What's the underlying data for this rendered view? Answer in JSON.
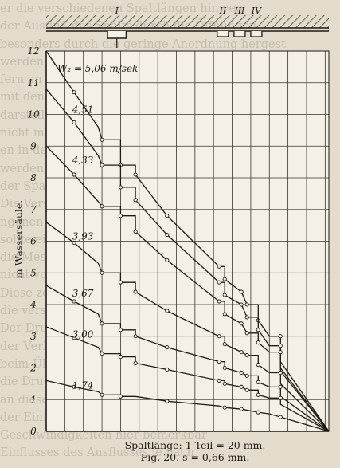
{
  "background_text": [
    "er die verschiedenen Spaltlängen hinweg",
    "der Ausfluß des Spalts durch die Öffnungen",
    "besonders durch die geringe Anordnung hergest",
    "werden die Druckverhältnisse und einzelne",
    "fern an den Stellen der Stoßzusammensetzung",
    "mit den verschiedenen kleinen Geschwindigkeiten",
    "darstellungen der Versuche für diesen Fall",
    "nicht mit den anderen Versuchsergebnissen",
    "en in der Anordnung der Spaltmündung",
    "werden die Druckhöhen durch Wasser auf",
    "der Spaltweiten, die Ergebnisse aus Versuchen",
    "Die Versuche in Ergänzung von Farbenuntersu",
    "ngenen Berührung zwischen den glatten Wänden",
    "sollte ein Vergleich dieser ursprünglich",
    "die Messung der Spaltlängen bei den einzelnen Stellen",
    "nicht vor allem bei verschiedenen Spaltweiten",
    "Diese zeigen auch, daß hierbei in den Wassersäulen",
    "die verschiedenen Spalten unmittelbar hinter",
    "Der Druck des Wassers verläuft in der Spaltrichtung",
    "der Verlauf der Linien im Bild nach den Versuchen",
    "beim Übergang von einer Stelle zur anderen",
    "die Druckabnahme im Spalt geradlinig erfolgt",
    "an diesen Stellen geringere Unterschiede",
    "der Einfluß der Stöße wird bei kleinen",
    "Geschwindigkeiten hier bemerkbar",
    "Einflusses des Ausflusses je nach"
  ],
  "chart_data": {
    "type": "line",
    "title": "",
    "xlabel": "Spaltlänge: 1 Teil = 20 mm.",
    "ylabel": "m Wassersäule.",
    "xlim": [
      0,
      15.2
    ],
    "ylim": [
      0,
      12
    ],
    "y_ticks": [
      0,
      1,
      2,
      3,
      4,
      5,
      6,
      7,
      8,
      9,
      10,
      11,
      12
    ],
    "grid": true,
    "legend": "none",
    "unit_label": "m/sek",
    "spalt_labels": [
      "I",
      "II",
      "III",
      "IV"
    ],
    "series": [
      {
        "name": "W₂ = 5,06",
        "label": "W₂ = 5,06 m/sek",
        "points": [
          [
            0,
            12.0
          ],
          [
            1.5,
            10.7
          ],
          [
            2.8,
            9.6
          ],
          [
            3.0,
            9.2
          ],
          [
            4.0,
            9.2
          ],
          [
            4.0,
            8.4
          ],
          [
            4.8,
            8.4
          ],
          [
            4.8,
            8.1
          ],
          [
            6.5,
            6.8
          ],
          [
            9.3,
            5.2
          ],
          [
            9.6,
            5.2
          ],
          [
            9.6,
            4.8
          ],
          [
            10.5,
            4.4
          ],
          [
            10.8,
            4.0
          ],
          [
            11.4,
            4.0
          ],
          [
            11.4,
            3.5
          ],
          [
            12.0,
            3.0
          ],
          [
            12.6,
            3.0
          ],
          [
            12.6,
            2.2
          ],
          [
            15.2,
            0
          ]
        ]
      },
      {
        "name": "4,51",
        "points": [
          [
            0,
            10.8
          ],
          [
            1.5,
            9.75
          ],
          [
            2.8,
            8.7
          ],
          [
            3.0,
            8.4
          ],
          [
            4.0,
            8.4
          ],
          [
            4.0,
            7.7
          ],
          [
            4.8,
            7.7
          ],
          [
            4.8,
            7.3
          ],
          [
            6.5,
            6.2
          ],
          [
            9.3,
            4.7
          ],
          [
            9.6,
            4.7
          ],
          [
            9.6,
            4.3
          ],
          [
            10.5,
            4.0
          ],
          [
            10.8,
            3.6
          ],
          [
            11.4,
            3.6
          ],
          [
            11.4,
            3.2
          ],
          [
            12.0,
            2.7
          ],
          [
            12.6,
            2.7
          ],
          [
            12.6,
            2.0
          ],
          [
            15.2,
            0
          ]
        ]
      },
      {
        "name": "4,33",
        "points": [
          [
            0,
            9.0
          ],
          [
            1.5,
            8.1
          ],
          [
            2.8,
            7.25
          ],
          [
            3.0,
            7.1
          ],
          [
            4.0,
            7.1
          ],
          [
            4.0,
            6.8
          ],
          [
            4.8,
            6.8
          ],
          [
            4.8,
            6.3
          ],
          [
            6.5,
            5.4
          ],
          [
            9.3,
            4.1
          ],
          [
            9.6,
            4.1
          ],
          [
            9.6,
            3.7
          ],
          [
            10.5,
            3.4
          ],
          [
            10.8,
            3.1
          ],
          [
            11.4,
            3.1
          ],
          [
            11.4,
            2.8
          ],
          [
            12.0,
            2.5
          ],
          [
            12.6,
            2.5
          ],
          [
            12.6,
            1.9
          ],
          [
            15.2,
            0
          ]
        ]
      },
      {
        "name": "3,93",
        "points": [
          [
            0,
            6.6
          ],
          [
            1.5,
            5.95
          ],
          [
            2.8,
            5.3
          ],
          [
            3.0,
            5.0
          ],
          [
            4.0,
            5.0
          ],
          [
            4.0,
            4.7
          ],
          [
            4.8,
            4.7
          ],
          [
            4.8,
            4.4
          ],
          [
            6.5,
            3.8
          ],
          [
            9.3,
            3.0
          ],
          [
            9.6,
            3.0
          ],
          [
            9.6,
            2.75
          ],
          [
            10.5,
            2.5
          ],
          [
            10.8,
            2.4
          ],
          [
            11.4,
            2.4
          ],
          [
            11.4,
            2.1
          ],
          [
            12.0,
            1.85
          ],
          [
            12.6,
            1.85
          ],
          [
            12.6,
            1.5
          ],
          [
            15.2,
            0
          ]
        ]
      },
      {
        "name": "3,67",
        "points": [
          [
            0,
            4.6
          ],
          [
            1.5,
            4.1
          ],
          [
            2.8,
            3.7
          ],
          [
            3.0,
            3.4
          ],
          [
            4.0,
            3.4
          ],
          [
            4.0,
            3.2
          ],
          [
            4.8,
            3.2
          ],
          [
            4.8,
            3.0
          ],
          [
            6.5,
            2.65
          ],
          [
            9.3,
            2.2
          ],
          [
            9.6,
            2.2
          ],
          [
            9.6,
            2.0
          ],
          [
            10.5,
            1.85
          ],
          [
            10.8,
            1.75
          ],
          [
            11.4,
            1.75
          ],
          [
            11.4,
            1.55
          ],
          [
            12.0,
            1.4
          ],
          [
            12.6,
            1.4
          ],
          [
            12.6,
            1.1
          ],
          [
            15.2,
            0
          ]
        ]
      },
      {
        "name": "3,00",
        "points": [
          [
            0,
            3.3
          ],
          [
            1.5,
            2.95
          ],
          [
            2.8,
            2.65
          ],
          [
            3.0,
            2.45
          ],
          [
            4.0,
            2.45
          ],
          [
            4.0,
            2.35
          ],
          [
            4.8,
            2.35
          ],
          [
            4.8,
            2.15
          ],
          [
            6.5,
            1.95
          ],
          [
            9.3,
            1.6
          ],
          [
            9.6,
            1.6
          ],
          [
            9.6,
            1.5
          ],
          [
            10.5,
            1.4
          ],
          [
            10.8,
            1.3
          ],
          [
            11.4,
            1.3
          ],
          [
            11.4,
            1.15
          ],
          [
            12.0,
            1.05
          ],
          [
            12.6,
            1.05
          ],
          [
            12.6,
            0.85
          ],
          [
            15.2,
            0
          ]
        ]
      },
      {
        "name": "1,74",
        "points": [
          [
            0,
            1.6
          ],
          [
            1.5,
            1.4
          ],
          [
            2.8,
            1.25
          ],
          [
            3.0,
            1.15
          ],
          [
            4.0,
            1.15
          ],
          [
            4.0,
            1.1
          ],
          [
            4.8,
            1.1
          ],
          [
            6.5,
            0.95
          ],
          [
            9.3,
            0.8
          ],
          [
            9.6,
            0.75
          ],
          [
            10.5,
            0.7
          ],
          [
            11.4,
            0.6
          ],
          [
            12.0,
            0.55
          ],
          [
            12.6,
            0.45
          ],
          [
            15.2,
            0
          ]
        ]
      }
    ]
  },
  "caption": {
    "line1": "Spaltlänge: 1 Teil = 20 mm.",
    "line2": "Fig. 20.   s = 0,66 mm."
  }
}
